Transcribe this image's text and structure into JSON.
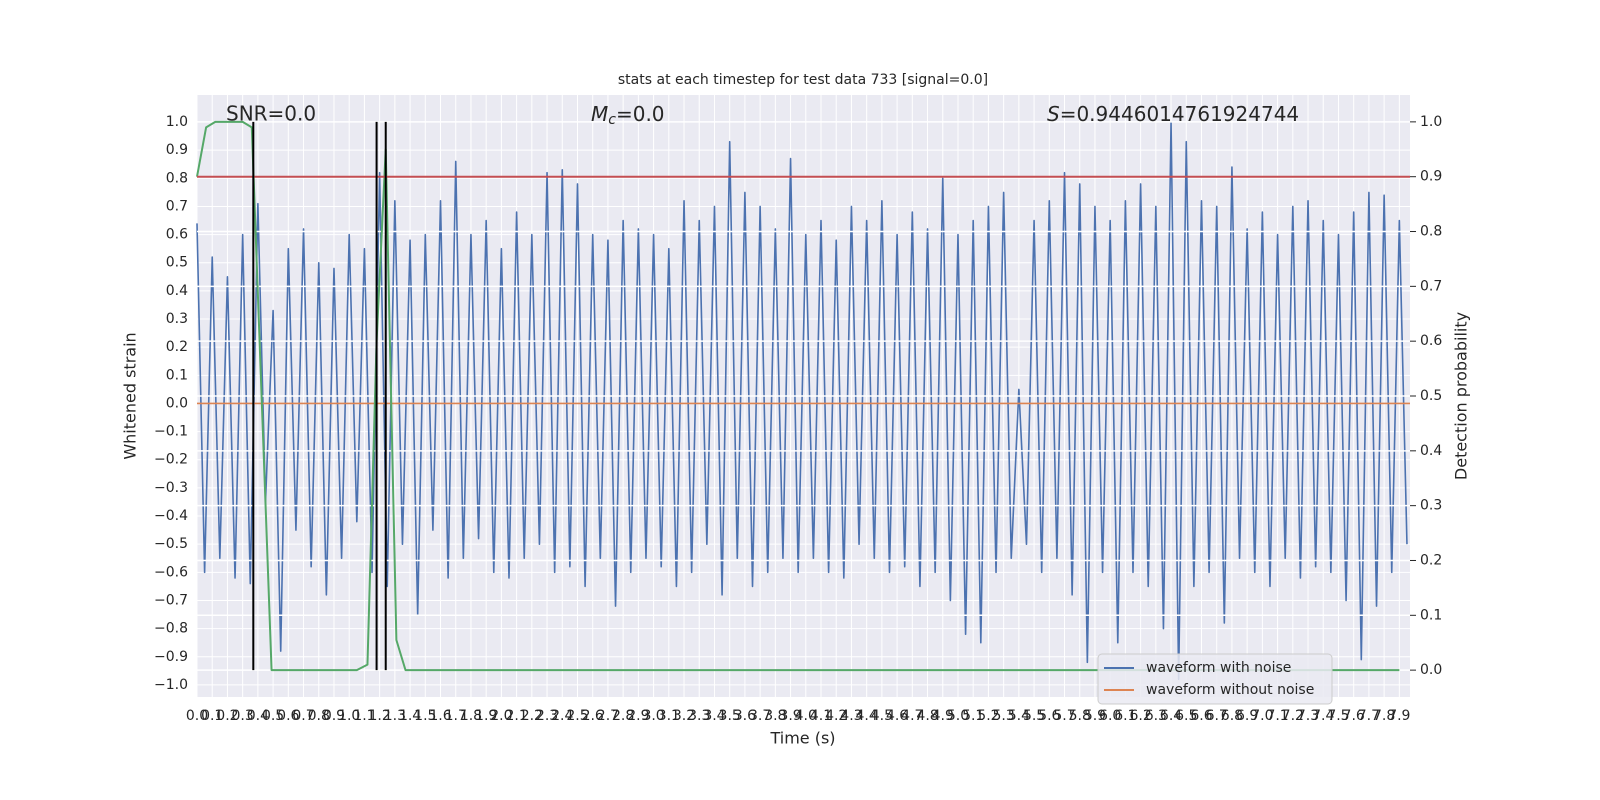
{
  "chart_data": {
    "type": "line",
    "title": "stats at each timestep for test data 733 [signal=0.0]",
    "xlabel": "Time (s)",
    "ylabel": "Whitened strain",
    "y2label": "Detection probability",
    "annotations": [
      {
        "text": "SNR=0.0"
      },
      {
        "symbol": "M",
        "subscript": "c",
        "text": "=0.0"
      },
      {
        "symbol": "S",
        "text": "=0.9446014761924744"
      }
    ],
    "grid": true,
    "legend": "lower right",
    "xlim": [
      0,
      7.97
    ],
    "ylim": [
      -1.043,
      1.096
    ],
    "y2lim": [
      -0.049,
      1.049
    ],
    "xticks": [
      {
        "value": 0,
        "label": "0.0"
      },
      0.1,
      0.2,
      0.3,
      0.4,
      0.5,
      0.6,
      0.7,
      0.8,
      0.9,
      {
        "value": 1,
        "label": "1.0"
      },
      1.1,
      1.2,
      1.3,
      1.4,
      1.5,
      1.6,
      1.7,
      1.8,
      1.9,
      {
        "value": 2,
        "label": "2.0"
      },
      2.1,
      2.2,
      2.3,
      2.4,
      2.5,
      2.6,
      2.7,
      2.8,
      2.9,
      {
        "value": 3,
        "label": "3.0"
      },
      3.1,
      3.2,
      3.3,
      3.4,
      3.5,
      3.6,
      3.7,
      3.8,
      3.9,
      {
        "value": 4,
        "label": "4.0"
      },
      4.1,
      4.2,
      4.3,
      4.4,
      4.5,
      4.6,
      4.7,
      4.8,
      4.9,
      {
        "value": 5,
        "label": "5.0"
      },
      5.1,
      5.2,
      5.3,
      5.4,
      5.5,
      5.6,
      5.7,
      5.8,
      5.9,
      {
        "value": 6,
        "label": "6.0"
      },
      6.1,
      6.2,
      6.3,
      6.4,
      6.5,
      6.6,
      6.7,
      6.8,
      6.9,
      {
        "value": 7,
        "label": "7.0"
      },
      7.1,
      7.2,
      7.3,
      7.4,
      7.5,
      7.6,
      7.7,
      7.8,
      7.9
    ],
    "yticks": [
      {
        "value": -1,
        "label": "−1.0"
      },
      {
        "value": -0.9,
        "label": "−0.9"
      },
      {
        "value": -0.8,
        "label": "−0.8"
      },
      {
        "value": -0.7,
        "label": "−0.7"
      },
      {
        "value": -0.6,
        "label": "−0.6"
      },
      {
        "value": -0.5,
        "label": "−0.5"
      },
      {
        "value": -0.4,
        "label": "−0.4"
      },
      {
        "value": -0.3,
        "label": "−0.3"
      },
      {
        "value": -0.2,
        "label": "−0.2"
      },
      {
        "value": -0.1,
        "label": "−0.1"
      },
      {
        "value": 0,
        "label": "0.0"
      },
      0.1,
      0.2,
      0.3,
      0.4,
      0.5,
      0.6,
      0.7,
      0.8,
      0.9,
      {
        "value": 1,
        "label": "1.0"
      }
    ],
    "y2ticks": [
      {
        "value": 0,
        "label": "0.0"
      },
      0.1,
      0.2,
      0.3,
      0.4,
      0.5,
      0.6,
      0.7,
      0.8,
      0.9,
      {
        "value": 1,
        "label": "1.0"
      }
    ],
    "series": [
      {
        "name": "waveform with noise",
        "color": "#4c72b0",
        "x": [
          0,
          0.05,
          0.1,
          0.15,
          0.2,
          0.25,
          0.3,
          0.35,
          0.4,
          0.45,
          0.5,
          0.55,
          0.6,
          0.65,
          0.7,
          0.75,
          0.8,
          0.85,
          0.9,
          0.95,
          1,
          1.05,
          1.1,
          1.15,
          1.2,
          1.25,
          1.3,
          1.35,
          1.4,
          1.45,
          1.5,
          1.55,
          1.6,
          1.65,
          1.7,
          1.75,
          1.8,
          1.85,
          1.9,
          1.95,
          2,
          2.05,
          2.1,
          2.15,
          2.2,
          2.25,
          2.3,
          2.35,
          2.4,
          2.45,
          2.5,
          2.55,
          2.6,
          2.65,
          2.7,
          2.75,
          2.8,
          2.85,
          2.9,
          2.95,
          3,
          3.05,
          3.1,
          3.15,
          3.2,
          3.25,
          3.3,
          3.35,
          3.4,
          3.45,
          3.5,
          3.55,
          3.6,
          3.65,
          3.7,
          3.75,
          3.8,
          3.85,
          3.9,
          3.95,
          4,
          4.05,
          4.1,
          4.15,
          4.2,
          4.25,
          4.3,
          4.35,
          4.4,
          4.45,
          4.5,
          4.55,
          4.6,
          4.65,
          4.7,
          4.75,
          4.8,
          4.85,
          4.9,
          4.95,
          5,
          5.05,
          5.1,
          5.15,
          5.2,
          5.25,
          5.3,
          5.35,
          5.4,
          5.45,
          5.5,
          5.55,
          5.6,
          5.65,
          5.7,
          5.75,
          5.8,
          5.85,
          5.9,
          5.95,
          6,
          6.05,
          6.1,
          6.15,
          6.2,
          6.25,
          6.3,
          6.35,
          6.4,
          6.45,
          6.5,
          6.55,
          6.6,
          6.65,
          6.7,
          6.75,
          6.8,
          6.85,
          6.9,
          6.95,
          7,
          7.05,
          7.1,
          7.15,
          7.2,
          7.25,
          7.3,
          7.35,
          7.4,
          7.45,
          7.5,
          7.55,
          7.6,
          7.65,
          7.7,
          7.75,
          7.8,
          7.85,
          7.9,
          7.95
        ],
        "values": [
          0.64,
          -0.6,
          0.52,
          -0.55,
          0.45,
          -0.62,
          0.6,
          -0.64,
          0.71,
          -0.35,
          0.33,
          -0.88,
          0.55,
          -0.45,
          0.62,
          -0.58,
          0.5,
          -0.68,
          0.48,
          -0.55,
          0.6,
          -0.42,
          0.55,
          -0.6,
          0.82,
          -0.65,
          0.72,
          -0.5,
          0.58,
          -0.75,
          0.6,
          -0.45,
          0.72,
          -0.62,
          0.86,
          -0.55,
          0.6,
          -0.48,
          0.65,
          -0.6,
          0.55,
          -0.62,
          0.68,
          -0.55,
          0.6,
          -0.5,
          0.82,
          -0.6,
          0.83,
          -0.58,
          0.78,
          -0.65,
          0.6,
          -0.55,
          0.58,
          -0.72,
          0.65,
          -0.6,
          0.62,
          -0.55,
          0.6,
          -0.58,
          0.55,
          -0.65,
          0.72,
          -0.6,
          0.65,
          -0.5,
          0.7,
          -0.68,
          0.93,
          -0.55,
          0.75,
          -0.65,
          0.7,
          -0.6,
          0.62,
          -0.55,
          0.87,
          -0.6,
          0.6,
          -0.55,
          0.65,
          -0.6,
          0.58,
          -0.62,
          0.7,
          -0.5,
          0.65,
          -0.55,
          0.72,
          -0.6,
          0.6,
          -0.58,
          0.68,
          -0.65,
          0.62,
          -0.6,
          0.8,
          -0.7,
          0.6,
          -0.82,
          0.65,
          -0.85,
          0.7,
          -0.6,
          0.75,
          -0.55,
          0.05,
          -0.5,
          0.65,
          -0.6,
          0.72,
          -0.55,
          0.82,
          -0.68,
          0.78,
          -0.92,
          0.7,
          -0.6,
          0.65,
          -0.85,
          0.72,
          -0.6,
          0.78,
          -0.65,
          0.7,
          -0.8,
          1.0,
          -0.98,
          0.93,
          -0.65,
          0.72,
          -0.6,
          0.7,
          -0.78,
          0.84,
          -0.55,
          0.62,
          -0.6,
          0.68,
          -0.65,
          0.6,
          -0.55,
          0.7,
          -0.62,
          0.72,
          -0.58,
          0.65,
          -0.6,
          0.6,
          -0.7,
          0.68,
          -0.91,
          0.75,
          -0.72,
          0.74,
          -0.6,
          0.65,
          -0.5
        ]
      },
      {
        "name": "waveform without noise",
        "color": "#dd8452",
        "x": [
          0,
          7.97
        ],
        "values": [
          0,
          0
        ]
      },
      {
        "color": "#55a868",
        "axis": "y2",
        "x": [
          0,
          0.06,
          0.12,
          0.2,
          0.3,
          0.36,
          0.49,
          1.05,
          1.12,
          1.18,
          1.24,
          1.31,
          1.37,
          7.9
        ],
        "values": [
          0.9,
          0.99,
          1.0,
          1.0,
          1.0,
          0.99,
          0.0,
          0.0,
          0.01,
          0.6,
          0.95,
          0.055,
          0.0,
          0.0
        ]
      }
    ],
    "threshold": {
      "value": 0.9,
      "axis": "y2",
      "color": "#c44e52"
    },
    "markers": {
      "x": [
        0.37,
        1.18,
        1.24
      ],
      "color": "#000000"
    }
  }
}
